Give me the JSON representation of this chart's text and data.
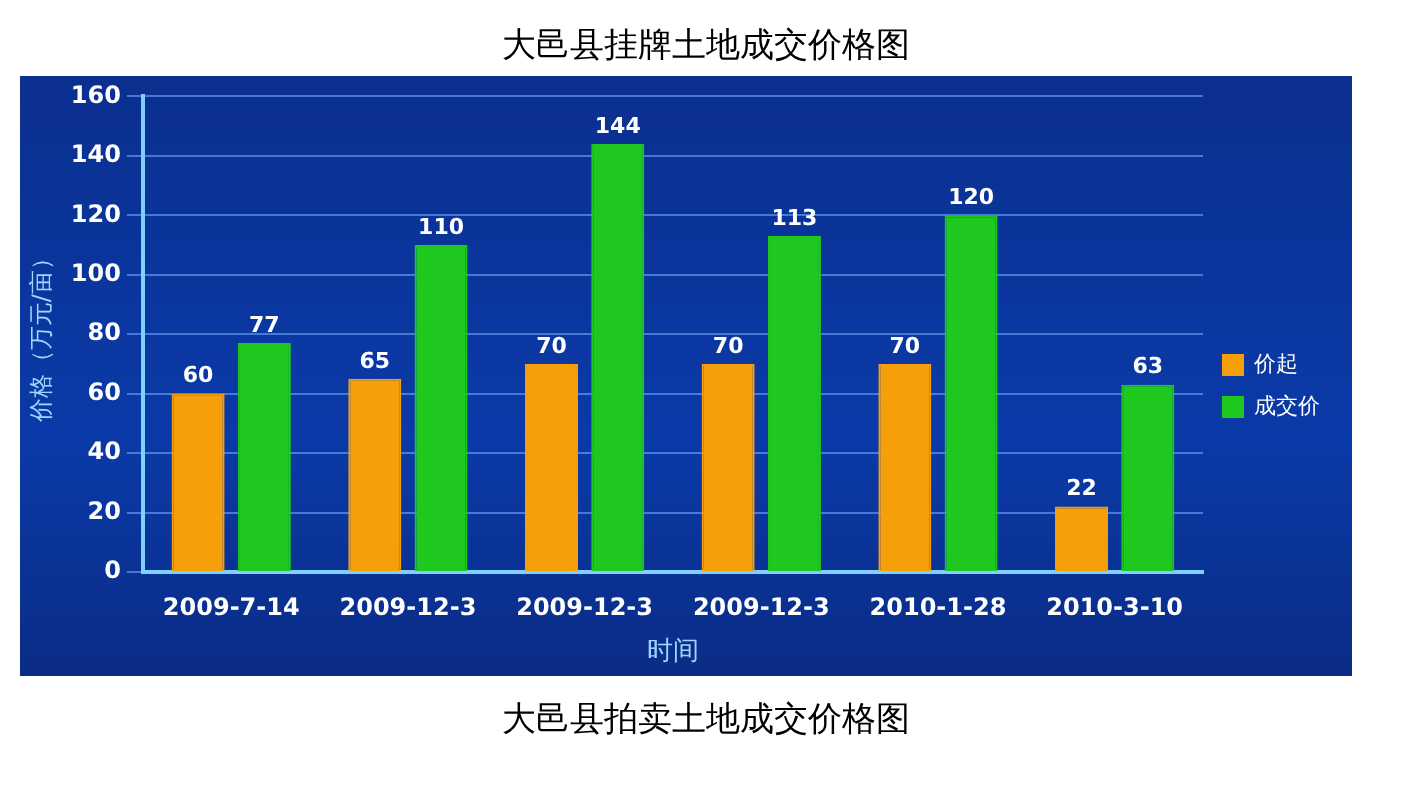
{
  "chart_data": {
    "type": "bar",
    "title": "大邑县挂牌土地成交价格图",
    "xlabel": "时间",
    "ylabel": "价格（万元/亩）",
    "categories": [
      "2009-7-14",
      "2009-12-3",
      "2009-12-3",
      "2009-12-3",
      "2010-1-28",
      "2010-3-10"
    ],
    "series": [
      {
        "name": "价起",
        "color": "#f5a00a",
        "values": [
          60,
          65,
          70,
          70,
          70,
          22
        ]
      },
      {
        "name": "成交价",
        "color": "#1ec81e",
        "values": [
          77,
          110,
          144,
          113,
          120,
          63
        ]
      }
    ],
    "ylim": [
      0,
      160
    ],
    "yticks": [
      0,
      20,
      40,
      60,
      80,
      100,
      120,
      140,
      160
    ],
    "grid": "y",
    "legend": "right",
    "data_labels": true,
    "annotations": [
      "大邑县拍卖土地成交价格图"
    ]
  }
}
